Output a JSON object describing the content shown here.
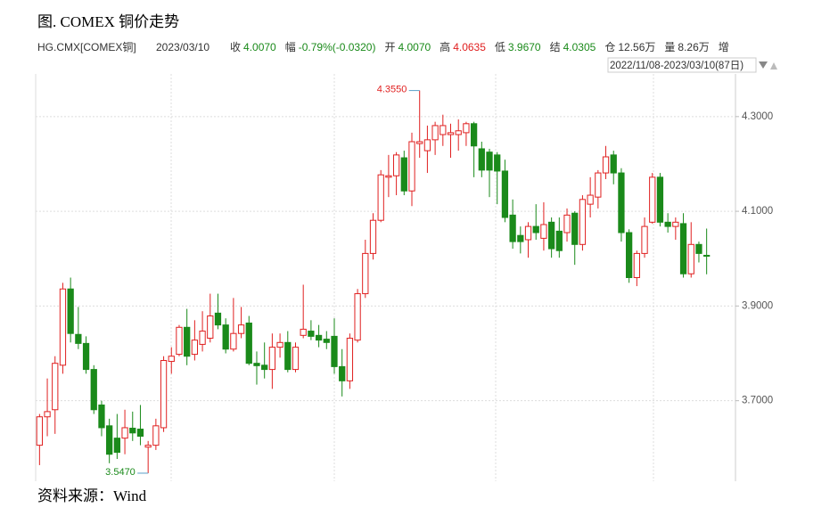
{
  "chart_data": {
    "type": "candlestick",
    "title": "图. COMEX 铜价走势",
    "symbol": "HG.CMX[COMEX铜]",
    "date": "2023/03/10",
    "quote": [
      {
        "label": "收",
        "value": "4.0070",
        "color": "#1a8a1a"
      },
      {
        "label": "幅",
        "value": "-0.79%(-0.0320)",
        "color": "#1a8a1a"
      },
      {
        "label": "开",
        "value": "4.0070",
        "color": "#1a8a1a"
      },
      {
        "label": "高",
        "value": "4.0635",
        "color": "#e02020"
      },
      {
        "label": "低",
        "value": "3.9670",
        "color": "#1a8a1a"
      },
      {
        "label": "结",
        "value": "4.0305",
        "color": "#1a8a1a"
      },
      {
        "label": "仓",
        "value": "12.56万",
        "color": "#333333"
      },
      {
        "label": "量",
        "value": "8.26万",
        "color": "#333333"
      },
      {
        "label": "增"
      }
    ],
    "range": "2022/11/08-2023/03/10(87日)",
    "source": "资料来源：Wind",
    "up_color": "#e02020",
    "down_color": "#1a8a1a",
    "open": [
      3.606,
      3.666,
      3.681,
      3.775,
      3.936,
      3.84,
      3.821,
      3.766,
      3.691,
      3.647,
      3.621,
      3.621,
      3.642,
      3.64,
      3.602,
      3.606,
      3.643,
      3.783,
      3.798,
      3.855,
      3.798,
      3.819,
      3.832,
      3.885,
      3.86,
      3.809,
      3.842,
      3.864,
      3.779,
      3.775,
      3.766,
      3.813,
      3.823,
      3.766,
      3.838,
      3.847,
      3.838,
      3.83,
      3.836,
      3.772,
      3.742,
      3.828,
      3.926,
      4.011,
      4.081,
      4.172,
      4.175,
      4.213,
      4.143,
      4.243,
      4.228,
      4.251,
      4.262,
      4.262,
      4.262,
      4.266,
      4.285,
      4.232,
      4.225,
      4.219,
      4.185,
      4.092,
      4.049,
      4.04,
      4.068,
      4.043,
      4.077,
      4.058,
      4.055,
      4.096,
      4.03,
      4.115,
      4.13,
      4.181,
      4.219,
      4.181,
      4.055,
      3.96,
      4.011,
      4.077,
      4.172,
      4.077,
      4.068,
      4.074,
      3.968,
      4.03,
      4.007
    ],
    "high": [
      3.672,
      3.747,
      3.794,
      3.949,
      3.96,
      3.898,
      3.836,
      3.775,
      3.7,
      3.662,
      3.672,
      3.681,
      3.677,
      3.691,
      3.615,
      3.662,
      3.794,
      3.813,
      3.86,
      3.894,
      3.87,
      3.889,
      3.926,
      3.926,
      3.874,
      3.917,
      3.898,
      3.879,
      3.804,
      3.823,
      3.842,
      3.842,
      3.847,
      3.823,
      3.945,
      3.87,
      3.86,
      3.847,
      3.874,
      3.809,
      3.842,
      3.936,
      4.04,
      4.096,
      4.187,
      4.219,
      4.225,
      4.228,
      4.266,
      4.355,
      4.281,
      4.289,
      4.304,
      4.285,
      4.294,
      4.289,
      4.289,
      4.247,
      4.232,
      4.225,
      4.209,
      4.125,
      4.068,
      4.077,
      4.115,
      4.119,
      4.087,
      4.087,
      4.106,
      4.1,
      4.134,
      4.172,
      4.187,
      4.238,
      4.228,
      4.191,
      4.062,
      4.017,
      4.087,
      4.181,
      4.181,
      4.096,
      4.087,
      4.096,
      4.077,
      4.036,
      4.0635
    ],
    "low": [
      3.564,
      3.625,
      3.63,
      3.757,
      3.823,
      3.809,
      3.757,
      3.672,
      3.625,
      3.568,
      3.577,
      3.587,
      3.615,
      3.606,
      3.547,
      3.596,
      3.634,
      3.757,
      3.794,
      3.775,
      3.785,
      3.804,
      3.823,
      3.851,
      3.8,
      3.804,
      3.832,
      3.775,
      3.734,
      3.747,
      3.725,
      3.791,
      3.76,
      3.76,
      3.832,
      3.828,
      3.813,
      3.809,
      3.757,
      3.709,
      3.725,
      3.823,
      3.917,
      3.998,
      4.077,
      4.13,
      4.134,
      4.134,
      4.111,
      4.213,
      4.181,
      4.219,
      4.238,
      4.213,
      4.228,
      4.238,
      4.172,
      4.172,
      4.13,
      4.115,
      4.077,
      4.021,
      4.011,
      4.002,
      4.04,
      4.017,
      4.002,
      4.002,
      4.036,
      3.987,
      4.017,
      4.087,
      4.106,
      4.168,
      4.157,
      4.036,
      3.949,
      3.942,
      4.002,
      4.074,
      4.068,
      4.055,
      4.04,
      3.96,
      3.96,
      3.992,
      3.967
    ],
    "close": [
      3.666,
      3.677,
      3.779,
      3.936,
      3.842,
      3.821,
      3.766,
      3.681,
      3.643,
      3.587,
      3.591,
      3.643,
      3.632,
      3.625,
      3.606,
      3.647,
      3.785,
      3.794,
      3.855,
      3.794,
      3.828,
      3.847,
      3.879,
      3.86,
      3.809,
      3.842,
      3.86,
      3.779,
      3.774,
      3.766,
      3.813,
      3.823,
      3.766,
      3.813,
      3.851,
      3.836,
      3.828,
      3.823,
      3.772,
      3.742,
      3.832,
      3.926,
      4.011,
      4.081,
      4.177,
      4.175,
      4.219,
      4.143,
      4.247,
      4.247,
      4.251,
      4.281,
      4.281,
      4.266,
      4.27,
      4.285,
      4.238,
      4.187,
      4.187,
      4.185,
      4.087,
      4.036,
      4.036,
      4.068,
      4.055,
      4.072,
      4.021,
      4.017,
      4.092,
      4.03,
      4.125,
      4.134,
      4.181,
      4.215,
      4.181,
      4.055,
      3.96,
      4.011,
      4.068,
      4.172,
      4.077,
      4.068,
      4.077,
      3.968,
      4.03,
      4.011,
      4.007
    ],
    "ylim": [
      3.53,
      4.39
    ],
    "yticks": [
      {
        "value": 3.7,
        "label": "3.7000"
      },
      {
        "value": 3.9,
        "label": "3.9000"
      },
      {
        "value": 4.1,
        "label": "4.1000"
      },
      {
        "value": 4.3,
        "label": "4.3000"
      }
    ],
    "grid": true,
    "annotations": [
      {
        "value": 4.355,
        "label": "4.3550",
        "index": 49,
        "color": "#e02020"
      },
      {
        "value": 3.547,
        "label": "3.5470",
        "index": 14,
        "color": "#1a8a1a"
      }
    ]
  }
}
